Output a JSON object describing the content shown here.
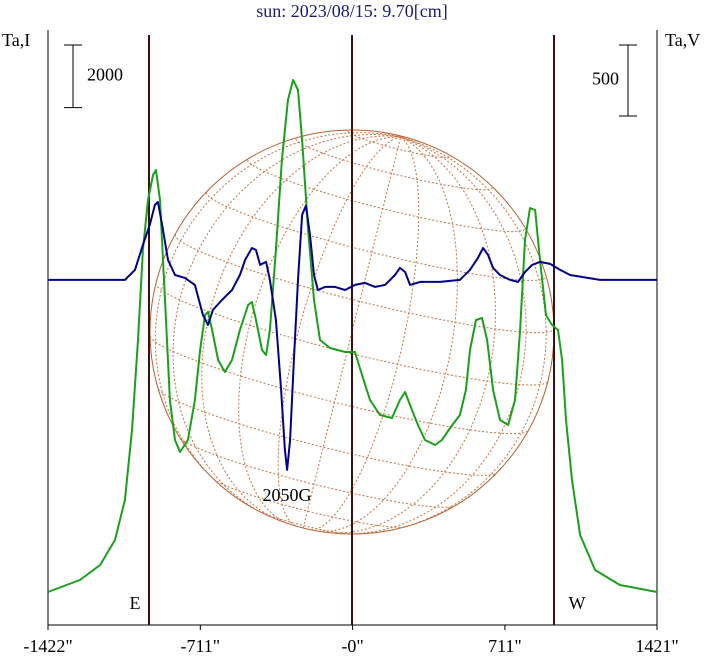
{
  "chart_data": {
    "type": "line",
    "title": "sun: 2023/08/15: 9.70[cm]",
    "ylabel": "Ta,I",
    "y2label": "Ta,V",
    "xlim": [
      -1422,
      1421
    ],
    "xticks": [
      {
        "value": -1422,
        "label": "-1422\""
      },
      {
        "value": -711,
        "label": "-711\""
      },
      {
        "value": 0,
        "label": "-0\""
      },
      {
        "value": 711,
        "label": "711\""
      },
      {
        "value": 1421,
        "label": "1421\""
      }
    ],
    "ylim": [
      0,
      19000
    ],
    "y2lim": [
      -2440,
      1750
    ],
    "scale_bars": [
      {
        "value": 2000,
        "axis": "y"
      },
      {
        "value": 500,
        "axis": "y2"
      }
    ],
    "annotations": [
      "2050G",
      "E",
      "W"
    ],
    "series": [
      {
        "color": "#1aa01a",
        "x": [
          -1422,
          -1273,
          -1179,
          -1109,
          -1063,
          -1030,
          -1002,
          -979,
          -955,
          -932,
          -918,
          -899,
          -876,
          -853,
          -829,
          -806,
          -769,
          -736,
          -712,
          -689,
          -675,
          -656,
          -628,
          -596,
          -563,
          -526,
          -488,
          -470,
          -451,
          -423,
          -404,
          -386,
          -358,
          -330,
          -302,
          -278,
          -255,
          -236,
          -208,
          -180,
          -152,
          -106,
          -35,
          11,
          44,
          81,
          128,
          184,
          221,
          245,
          268,
          305,
          338,
          385,
          417,
          455,
          501,
          529,
          548,
          576,
          604,
          628,
          656,
          688,
          726,
          758,
          782,
          805,
          828,
          852,
          875,
          903,
          931,
          959,
          978,
          996,
          1024,
          1062,
          1132,
          1248,
          1421
        ],
        "values": [
          1054,
          1437,
          1916,
          2714,
          3991,
          6226,
          9100,
          11974,
          13570,
          14369,
          14528,
          13570,
          10377,
          7184,
          5907,
          5524,
          5907,
          7184,
          8781,
          9898,
          9994,
          9419,
          8461,
          8078,
          8461,
          9419,
          10218,
          10313,
          9739,
          8781,
          8621,
          9419,
          11974,
          14847,
          16763,
          17402,
          17083,
          15486,
          12612,
          10377,
          9100,
          8845,
          8717,
          8717,
          7983,
          7184,
          6705,
          6610,
          7184,
          7440,
          7025,
          6386,
          5907,
          5747,
          5907,
          6290,
          6705,
          7504,
          8781,
          9739,
          9803,
          9100,
          7504,
          6546,
          6386,
          7184,
          9419,
          12293,
          13315,
          13251,
          11654,
          9898,
          9579,
          9419,
          8461,
          6546,
          4630,
          2874,
          1756,
          1277,
          1054
        ]
      },
      {
        "color": "#00008b",
        "axis": "y2",
        "x": [
          -1422,
          -1179,
          -1063,
          -1016,
          -979,
          -946,
          -923,
          -909,
          -890,
          -862,
          -829,
          -783,
          -736,
          -699,
          -675,
          -652,
          -610,
          -563,
          -526,
          -502,
          -470,
          -451,
          -432,
          -404,
          -386,
          -358,
          -334,
          -316,
          -306,
          -292,
          -274,
          -255,
          -236,
          -218,
          -199,
          -180,
          -162,
          -129,
          -82,
          -35,
          11,
          58,
          105,
          151,
          198,
          221,
          245,
          268,
          315,
          408,
          501,
          548,
          585,
          609,
          632,
          656,
          688,
          735,
          772,
          805,
          838,
          875,
          922,
          968,
          1015,
          1155,
          1421
        ],
        "values": [
          -10,
          -10,
          -10,
          61,
          237,
          384,
          518,
          539,
          384,
          131,
          25,
          4,
          -45,
          -256,
          -327,
          -221,
          -151,
          -81,
          25,
          131,
          215,
          201,
          96,
          117,
          -10,
          -291,
          -784,
          -1207,
          -1348,
          -1136,
          -573,
          -10,
          448,
          512,
          307,
          25,
          -81,
          -59,
          -59,
          -81,
          -45,
          -31,
          -59,
          -45,
          25,
          75,
          46,
          -45,
          -24,
          -24,
          -10,
          61,
          145,
          215,
          166,
          75,
          25,
          -10,
          -24,
          46,
          96,
          117,
          103,
          61,
          25,
          -10,
          -10
        ]
      }
    ]
  }
}
